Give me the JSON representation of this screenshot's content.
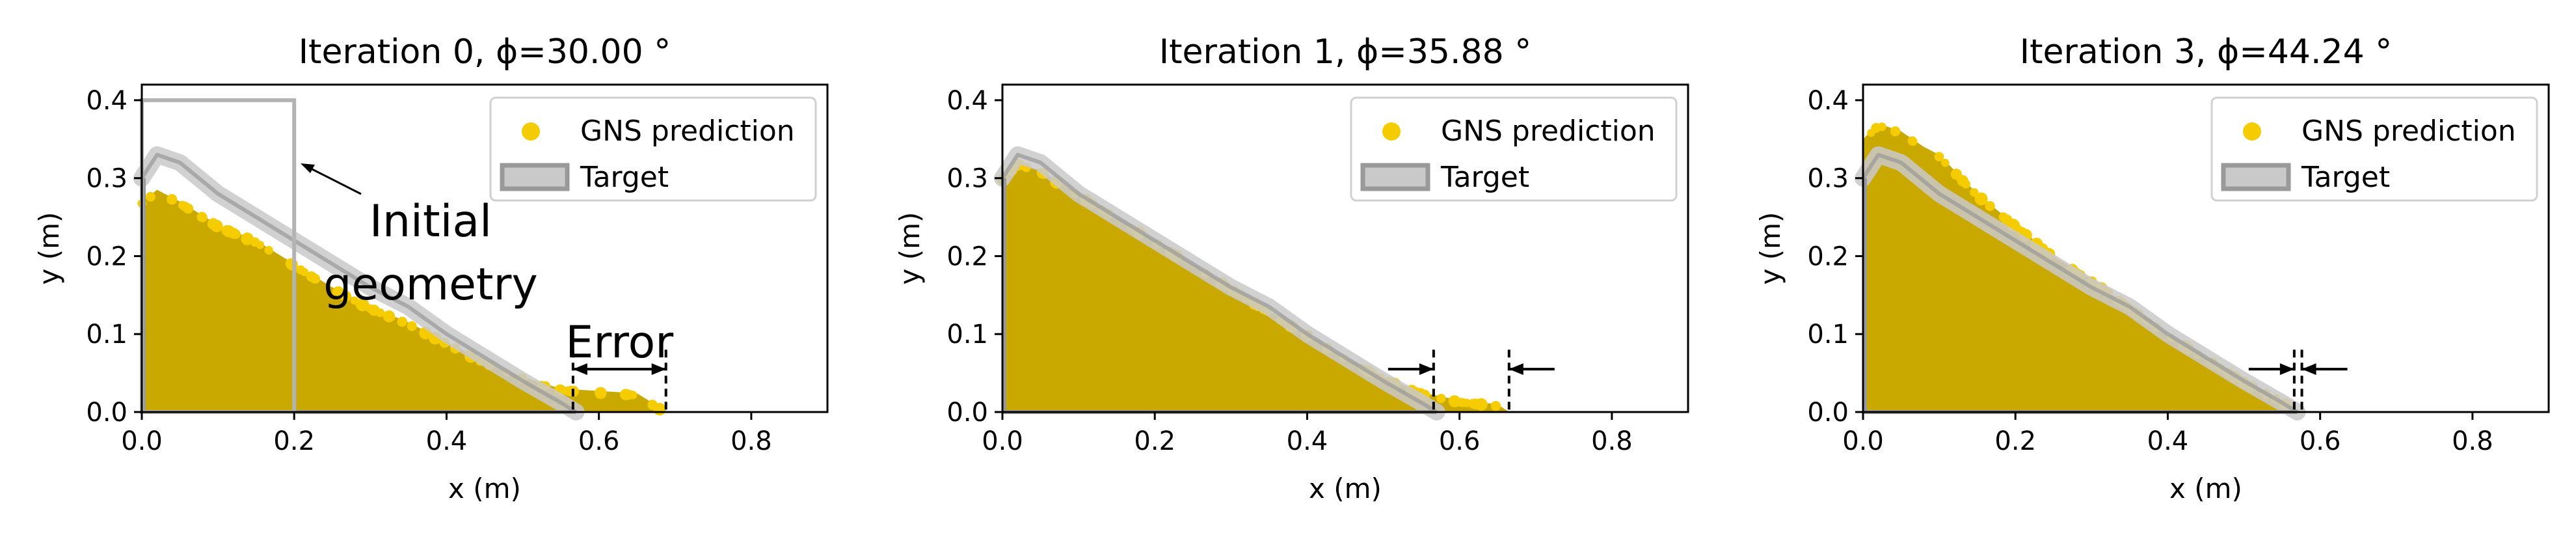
{
  "colors": {
    "prediction": "#f5cc00",
    "prediction_dark": "#c9a800",
    "target_fill": "#c9c9c9",
    "target_edge": "#999999",
    "initial_geometry": "#b3b3b3"
  },
  "chart_data": [
    {
      "type": "area",
      "title": "Iteration 0, ϕ=30.00 °",
      "xlabel": "x (m)",
      "ylabel": "y (m)",
      "xlim": [
        0.0,
        0.9
      ],
      "ylim": [
        0.0,
        0.42
      ],
      "xticks": [
        "0.0",
        "0.2",
        "0.4",
        "0.6",
        "0.8"
      ],
      "yticks": [
        "0.0",
        "0.1",
        "0.2",
        "0.3",
        "0.4"
      ],
      "legend": [
        "GNS prediction",
        "Target"
      ],
      "legend_position": "top-right",
      "series": [
        {
          "name": "GNS prediction",
          "x": [
            0.0,
            0.02,
            0.05,
            0.1,
            0.15,
            0.2,
            0.25,
            0.3,
            0.35,
            0.4,
            0.45,
            0.5,
            0.55,
            0.6,
            0.65,
            0.69
          ],
          "y": [
            0.27,
            0.285,
            0.27,
            0.24,
            0.22,
            0.19,
            0.16,
            0.135,
            0.115,
            0.09,
            0.065,
            0.045,
            0.03,
            0.027,
            0.024,
            0.0
          ]
        },
        {
          "name": "Target",
          "x": [
            0.0,
            0.02,
            0.05,
            0.1,
            0.15,
            0.2,
            0.25,
            0.3,
            0.35,
            0.4,
            0.45,
            0.5,
            0.55,
            0.57
          ],
          "y": [
            0.3,
            0.33,
            0.32,
            0.28,
            0.25,
            0.22,
            0.19,
            0.16,
            0.135,
            0.1,
            0.07,
            0.04,
            0.012,
            0.0
          ]
        }
      ],
      "initial_geometry": {
        "x": [
          0,
          0.2
        ],
        "y": [
          0,
          0.4
        ]
      },
      "annotations": {
        "initial_geometry_label": [
          "Initial",
          "geometry"
        ],
        "error_label": "Error",
        "error_lines_x": [
          0.566,
          0.688
        ]
      }
    },
    {
      "type": "area",
      "title": "Iteration 1, ϕ=35.88 °",
      "xlabel": "x (m)",
      "ylabel": "y (m)",
      "xlim": [
        0.0,
        0.9
      ],
      "ylim": [
        0.0,
        0.42
      ],
      "xticks": [
        "0.0",
        "0.2",
        "0.4",
        "0.6",
        "0.8"
      ],
      "yticks": [
        "0.0",
        "0.1",
        "0.2",
        "0.3",
        "0.4"
      ],
      "legend": [
        "GNS prediction",
        "Target"
      ],
      "legend_position": "top-right",
      "series": [
        {
          "name": "GNS prediction",
          "x": [
            0.0,
            0.02,
            0.05,
            0.1,
            0.15,
            0.2,
            0.25,
            0.3,
            0.35,
            0.4,
            0.45,
            0.5,
            0.55,
            0.6,
            0.65,
            0.665
          ],
          "y": [
            0.3,
            0.32,
            0.31,
            0.28,
            0.25,
            0.22,
            0.19,
            0.16,
            0.13,
            0.1,
            0.07,
            0.045,
            0.025,
            0.015,
            0.01,
            0.0
          ]
        },
        {
          "name": "Target",
          "x": [
            0.0,
            0.02,
            0.05,
            0.1,
            0.15,
            0.2,
            0.25,
            0.3,
            0.35,
            0.4,
            0.45,
            0.5,
            0.55,
            0.57
          ],
          "y": [
            0.3,
            0.33,
            0.32,
            0.28,
            0.25,
            0.22,
            0.19,
            0.16,
            0.135,
            0.1,
            0.07,
            0.04,
            0.012,
            0.0
          ]
        }
      ],
      "annotations": {
        "error_lines_x": [
          0.566,
          0.665
        ]
      }
    },
    {
      "type": "area",
      "title": "Iteration 3, ϕ=44.24 °",
      "xlabel": "x (m)",
      "ylabel": "y (m)",
      "xlim": [
        0.0,
        0.9
      ],
      "ylim": [
        0.0,
        0.42
      ],
      "xticks": [
        "0.0",
        "0.2",
        "0.4",
        "0.6",
        "0.8"
      ],
      "yticks": [
        "0.0",
        "0.1",
        "0.2",
        "0.3",
        "0.4"
      ],
      "legend": [
        "GNS prediction",
        "Target"
      ],
      "legend_position": "top-right",
      "series": [
        {
          "name": "GNS prediction",
          "x": [
            0.0,
            0.02,
            0.05,
            0.08,
            0.1,
            0.15,
            0.2,
            0.25,
            0.3,
            0.35,
            0.4,
            0.45,
            0.5,
            0.55,
            0.575
          ],
          "y": [
            0.35,
            0.37,
            0.36,
            0.34,
            0.33,
            0.28,
            0.24,
            0.2,
            0.17,
            0.135,
            0.1,
            0.07,
            0.04,
            0.015,
            0.0
          ]
        },
        {
          "name": "Target",
          "x": [
            0.0,
            0.02,
            0.05,
            0.1,
            0.15,
            0.2,
            0.25,
            0.3,
            0.35,
            0.4,
            0.45,
            0.5,
            0.55,
            0.57
          ],
          "y": [
            0.3,
            0.33,
            0.32,
            0.28,
            0.25,
            0.22,
            0.19,
            0.16,
            0.135,
            0.1,
            0.07,
            0.04,
            0.012,
            0.0
          ]
        }
      ],
      "annotations": {
        "error_lines_x": [
          0.566,
          0.576
        ]
      }
    }
  ]
}
